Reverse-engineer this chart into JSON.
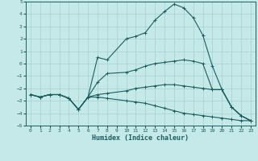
{
  "xlabel": "Humidex (Indice chaleur)",
  "xlim": [
    -0.5,
    23.5
  ],
  "ylim": [
    -5,
    5
  ],
  "xticks": [
    0,
    1,
    2,
    3,
    4,
    5,
    6,
    7,
    8,
    9,
    10,
    11,
    12,
    13,
    14,
    15,
    16,
    17,
    18,
    19,
    20,
    21,
    22,
    23
  ],
  "yticks": [
    -5,
    -4,
    -3,
    -2,
    -1,
    0,
    1,
    2,
    3,
    4,
    5
  ],
  "bg_color": "#c5e8e8",
  "grid_color": "#a8d0d0",
  "line_color": "#1a5f5f",
  "curves": {
    "max": [
      [
        0,
        -2.5
      ],
      [
        1,
        -2.7
      ],
      [
        2,
        -2.5
      ],
      [
        3,
        -2.5
      ],
      [
        4,
        -2.8
      ],
      [
        5,
        -3.7
      ],
      [
        6,
        -2.7
      ],
      [
        7,
        0.5
      ],
      [
        8,
        0.3
      ],
      [
        10,
        2.0
      ],
      [
        11,
        2.2
      ],
      [
        12,
        2.5
      ],
      [
        13,
        3.5
      ],
      [
        14,
        4.2
      ],
      [
        15,
        4.8
      ],
      [
        16,
        4.5
      ],
      [
        17,
        3.7
      ],
      [
        18,
        2.3
      ],
      [
        19,
        -0.2
      ],
      [
        20,
        -2.1
      ],
      [
        21,
        -3.5
      ],
      [
        22,
        -4.2
      ],
      [
        23,
        -4.6
      ]
    ],
    "mean1": [
      [
        0,
        -2.5
      ],
      [
        1,
        -2.7
      ],
      [
        2,
        -2.5
      ],
      [
        3,
        -2.5
      ],
      [
        4,
        -2.8
      ],
      [
        5,
        -3.7
      ],
      [
        6,
        -2.7
      ],
      [
        7,
        -1.5
      ],
      [
        8,
        -0.8
      ],
      [
        10,
        -0.7
      ],
      [
        11,
        -0.5
      ],
      [
        12,
        -0.2
      ],
      [
        13,
        0.0
      ],
      [
        14,
        0.1
      ],
      [
        15,
        0.2
      ],
      [
        16,
        0.3
      ],
      [
        17,
        0.2
      ],
      [
        18,
        0.0
      ],
      [
        19,
        -2.1
      ],
      [
        20,
        -2.1
      ],
      [
        21,
        -3.5
      ],
      [
        22,
        -4.2
      ],
      [
        23,
        -4.6
      ]
    ],
    "mean2": [
      [
        0,
        -2.5
      ],
      [
        1,
        -2.7
      ],
      [
        2,
        -2.5
      ],
      [
        3,
        -2.5
      ],
      [
        4,
        -2.8
      ],
      [
        5,
        -3.7
      ],
      [
        6,
        -2.7
      ],
      [
        7,
        -2.5
      ],
      [
        8,
        -2.4
      ],
      [
        10,
        -2.2
      ],
      [
        11,
        -2.0
      ],
      [
        12,
        -1.9
      ],
      [
        13,
        -1.8
      ],
      [
        14,
        -1.7
      ],
      [
        15,
        -1.7
      ],
      [
        16,
        -1.8
      ],
      [
        17,
        -1.9
      ],
      [
        18,
        -2.0
      ],
      [
        19,
        -2.1
      ],
      [
        20,
        -2.1
      ],
      [
        21,
        -3.5
      ],
      [
        22,
        -4.2
      ],
      [
        23,
        -4.6
      ]
    ],
    "min": [
      [
        0,
        -2.5
      ],
      [
        1,
        -2.7
      ],
      [
        2,
        -2.5
      ],
      [
        3,
        -2.5
      ],
      [
        4,
        -2.8
      ],
      [
        5,
        -3.7
      ],
      [
        6,
        -2.7
      ],
      [
        7,
        -2.7
      ],
      [
        8,
        -2.8
      ],
      [
        10,
        -3.0
      ],
      [
        11,
        -3.1
      ],
      [
        12,
        -3.2
      ],
      [
        13,
        -3.4
      ],
      [
        14,
        -3.6
      ],
      [
        15,
        -3.8
      ],
      [
        16,
        -4.0
      ],
      [
        17,
        -4.1
      ],
      [
        18,
        -4.2
      ],
      [
        19,
        -4.3
      ],
      [
        20,
        -4.4
      ],
      [
        21,
        -4.5
      ],
      [
        22,
        -4.6
      ],
      [
        23,
        -4.6
      ]
    ]
  }
}
